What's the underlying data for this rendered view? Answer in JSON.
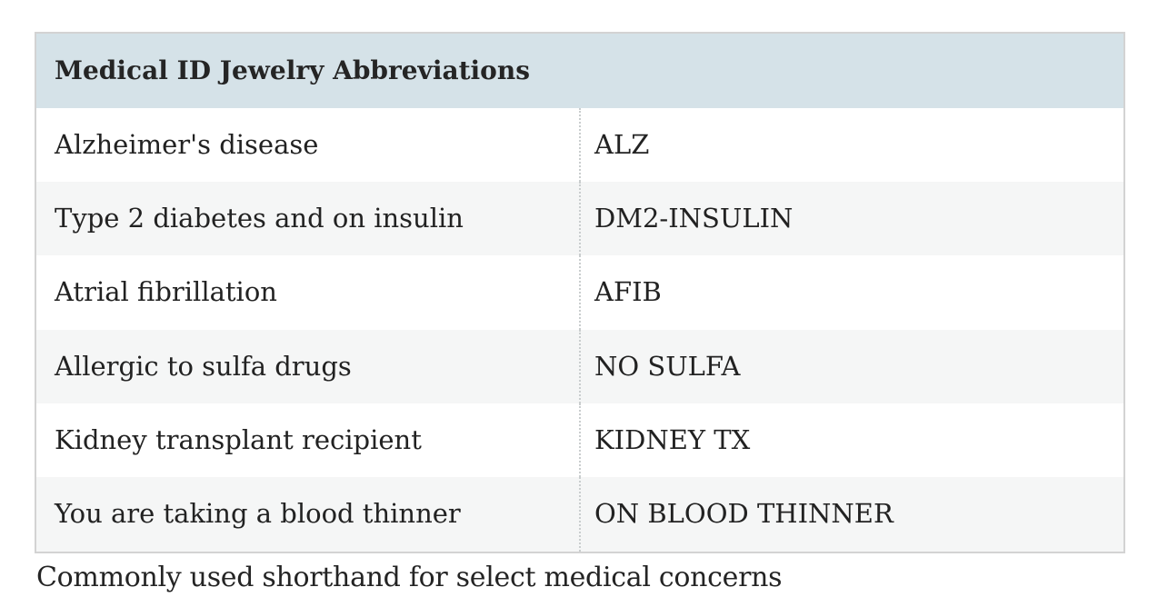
{
  "table": {
    "title": "Medical ID Jewelry Abbreviations",
    "columns": [
      "condition",
      "abbreviation"
    ],
    "rows": [
      {
        "condition": "Alzheimer's disease",
        "abbreviation": "ALZ"
      },
      {
        "condition": "Type 2 diabetes and on insulin",
        "abbreviation": "DM2-INSULIN"
      },
      {
        "condition": "Atrial fibrillation",
        "abbreviation": "AFIB"
      },
      {
        "condition": "Allergic to sulfa drugs",
        "abbreviation": "NO SULFA"
      },
      {
        "condition": "Kidney transplant recipient",
        "abbreviation": "KIDNEY TX"
      },
      {
        "condition": "You are taking a blood thinner",
        "abbreviation": "ON BLOOD THINNER"
      }
    ],
    "caption": "Commonly used shorthand for select medical concerns"
  },
  "colors": {
    "header_bg": "#d5e2e8",
    "row_alt_bg": "#f5f6f6",
    "table_border": "#d3d3d3",
    "column_divider": "#c9cdce",
    "text": "#222222"
  }
}
